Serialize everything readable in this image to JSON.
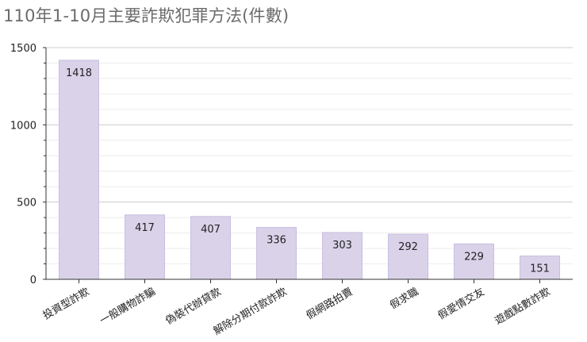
{
  "chart_data": {
    "type": "bar",
    "title": "110年1-10月主要詐欺犯罪方法(件數)",
    "xlabel": "",
    "ylabel": "",
    "categories": [
      "投資型詐欺",
      "一般購物詐騙",
      "偽裝代辦貸款",
      "解除分期付款詐欺",
      "假網路拍賣",
      "假求職",
      "假愛情交友",
      "遊戲點數詐欺"
    ],
    "values": [
      1418,
      417,
      407,
      336,
      303,
      292,
      229,
      151
    ],
    "ylim": [
      0,
      1500
    ],
    "yticks": [
      0,
      500,
      1000,
      1500
    ],
    "grid": true,
    "legend": "none",
    "bar_color": "#d9d2e9",
    "bar_border_color": "#c8bfe0"
  }
}
